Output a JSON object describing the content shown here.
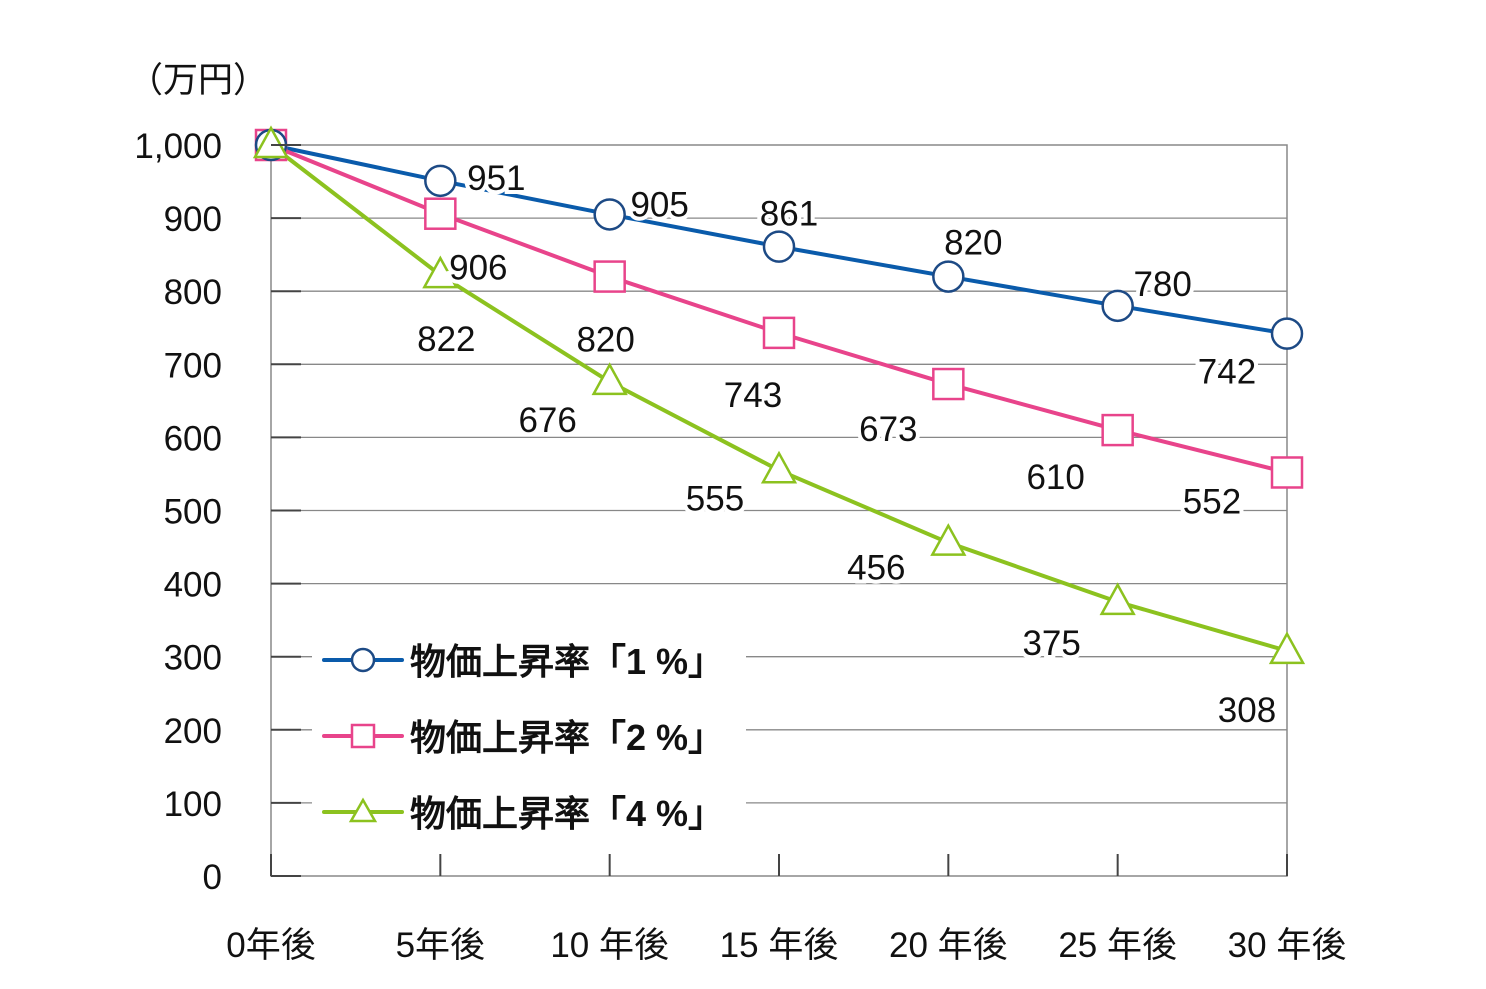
{
  "chart_data": {
    "type": "line",
    "unit_label": "（万円）",
    "categories": [
      "0年後",
      "5年後",
      "10 年後",
      "15 年後",
      "20 年後",
      "25 年後",
      "30 年後"
    ],
    "x": [
      0,
      5,
      10,
      15,
      20,
      25,
      30
    ],
    "ylim": [
      0,
      1000
    ],
    "yticks": [
      "0",
      "100",
      "200",
      "300",
      "400",
      "500",
      "600",
      "700",
      "800",
      "900",
      "1,000"
    ],
    "grid": true,
    "legend_position": "bottom-left",
    "series": [
      {
        "name": "物価上昇率「1 %」",
        "color": "#0a5bab",
        "marker": "circle",
        "values": [
          1000,
          951,
          905,
          861,
          820,
          780,
          742
        ],
        "labels": [
          "",
          "951",
          "905",
          "861",
          "820",
          "780",
          "742"
        ]
      },
      {
        "name": "物価上昇率「2 %」",
        "color": "#e8448b",
        "marker": "square",
        "values": [
          1000,
          906,
          820,
          743,
          673,
          610,
          552
        ],
        "labels": [
          "",
          "906",
          "820",
          "743",
          "673",
          "610",
          "552"
        ]
      },
      {
        "name": "物価上昇率「4 %」",
        "color": "#8cc21f",
        "marker": "triangle",
        "values": [
          1000,
          822,
          676,
          555,
          456,
          375,
          308
        ],
        "labels": [
          "",
          "822",
          "676",
          "555",
          "456",
          "375",
          "308"
        ]
      }
    ]
  }
}
